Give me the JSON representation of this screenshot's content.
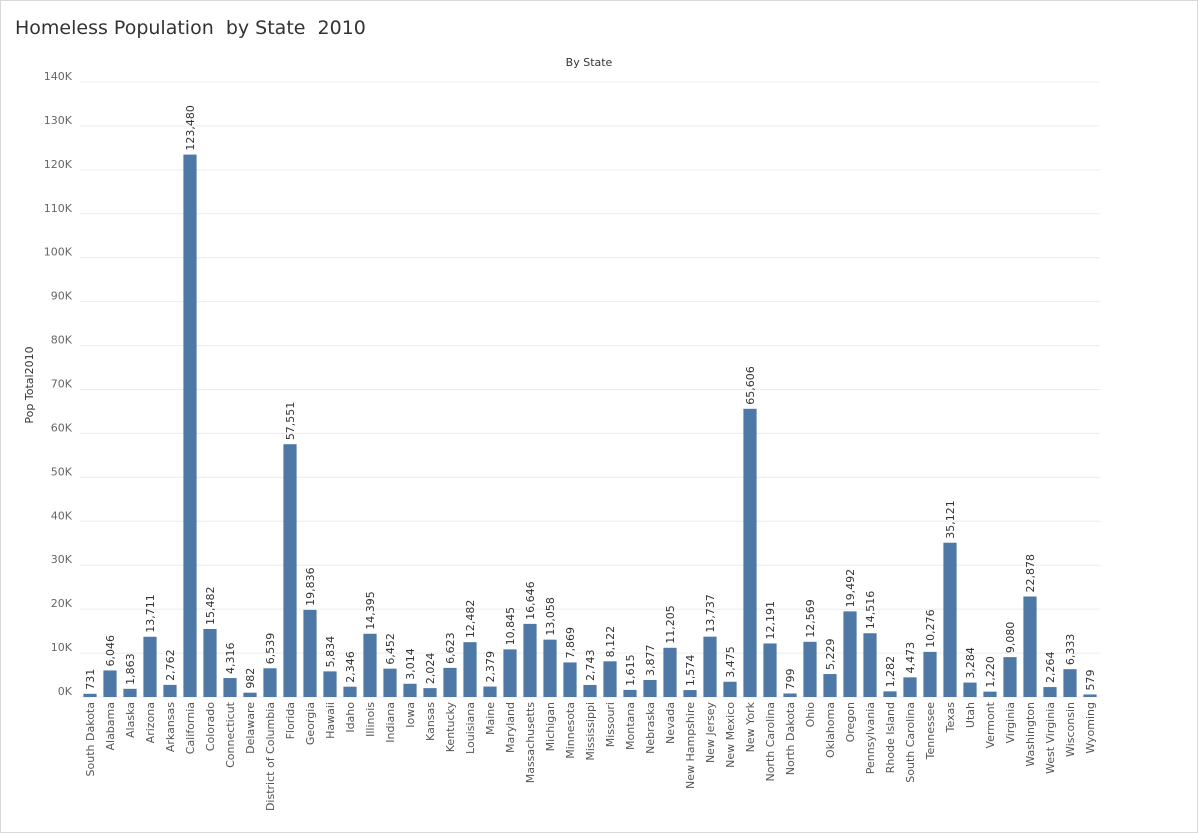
{
  "chart_data": {
    "type": "bar",
    "title": "Homeless Population  by State  2010",
    "header": "By State",
    "ylabel": "Pop Total2010",
    "ylim": [
      0,
      140000
    ],
    "yticks": [
      0,
      10000,
      20000,
      30000,
      40000,
      50000,
      60000,
      70000,
      80000,
      90000,
      100000,
      110000,
      120000,
      130000,
      140000
    ],
    "ytick_labels": [
      "0K",
      "10K",
      "20K",
      "30K",
      "40K",
      "50K",
      "60K",
      "70K",
      "80K",
      "90K",
      "100K",
      "110K",
      "120K",
      "130K",
      "140K"
    ],
    "grid": true,
    "bar_color": "#4e79a7",
    "categories": [
      "South Dakota",
      "Alabama",
      "Alaska",
      "Arizona",
      "Arkansas",
      "California",
      "Colorado",
      "Connecticut",
      "Delaware",
      "District of Columbia",
      "Florida",
      "Georgia",
      "Hawaii",
      "Idaho",
      "Illinois",
      "Indiana",
      "Iowa",
      "Kansas",
      "Kentucky",
      "Louisiana",
      "Maine",
      "Maryland",
      "Massachusetts",
      "Michigan",
      "Minnesota",
      "Mississippi",
      "Missouri",
      "Montana",
      "Nebraska",
      "Nevada",
      "New Hampshire",
      "New Jersey",
      "New Mexico",
      "New York",
      "North Carolina",
      "North Dakota",
      "Ohio",
      "Oklahoma",
      "Oregon",
      "Pennsylvania",
      "Rhode Island",
      "South Carolina",
      "Tennessee",
      "Texas",
      "Utah",
      "Vermont",
      "Virginia",
      "Washington",
      "West Virginia",
      "Wisconsin",
      "Wyoming"
    ],
    "values": [
      731,
      6046,
      1863,
      13711,
      2762,
      123480,
      15482,
      4316,
      982,
      6539,
      57551,
      19836,
      5834,
      2346,
      14395,
      6452,
      3014,
      2024,
      6623,
      12482,
      2379,
      10845,
      16646,
      13058,
      7869,
      2743,
      8122,
      1615,
      3877,
      11205,
      1574,
      13737,
      3475,
      65606,
      12191,
      799,
      12569,
      5229,
      19492,
      14516,
      1282,
      4473,
      10276,
      35121,
      3284,
      1220,
      9080,
      22878,
      2264,
      6333,
      579
    ],
    "value_labels": [
      "731",
      "6,046",
      "1,863",
      "13,711",
      "2,762",
      "123,480",
      "15,482",
      "4,316",
      "982",
      "6,539",
      "57,551",
      "19,836",
      "5,834",
      "2,346",
      "14,395",
      "6,452",
      "3,014",
      "2,024",
      "6,623",
      "12,482",
      "2,379",
      "10,845",
      "16,646",
      "13,058",
      "7,869",
      "2,743",
      "8,122",
      "1,615",
      "3,877",
      "11,205",
      "1,574",
      "13,737",
      "3,475",
      "65,606",
      "12,191",
      "799",
      "12,569",
      "5,229",
      "19,492",
      "14,516",
      "1,282",
      "4,473",
      "10,276",
      "35,121",
      "3,284",
      "1,220",
      "9,080",
      "22,878",
      "2,264",
      "6,333",
      "579"
    ]
  }
}
